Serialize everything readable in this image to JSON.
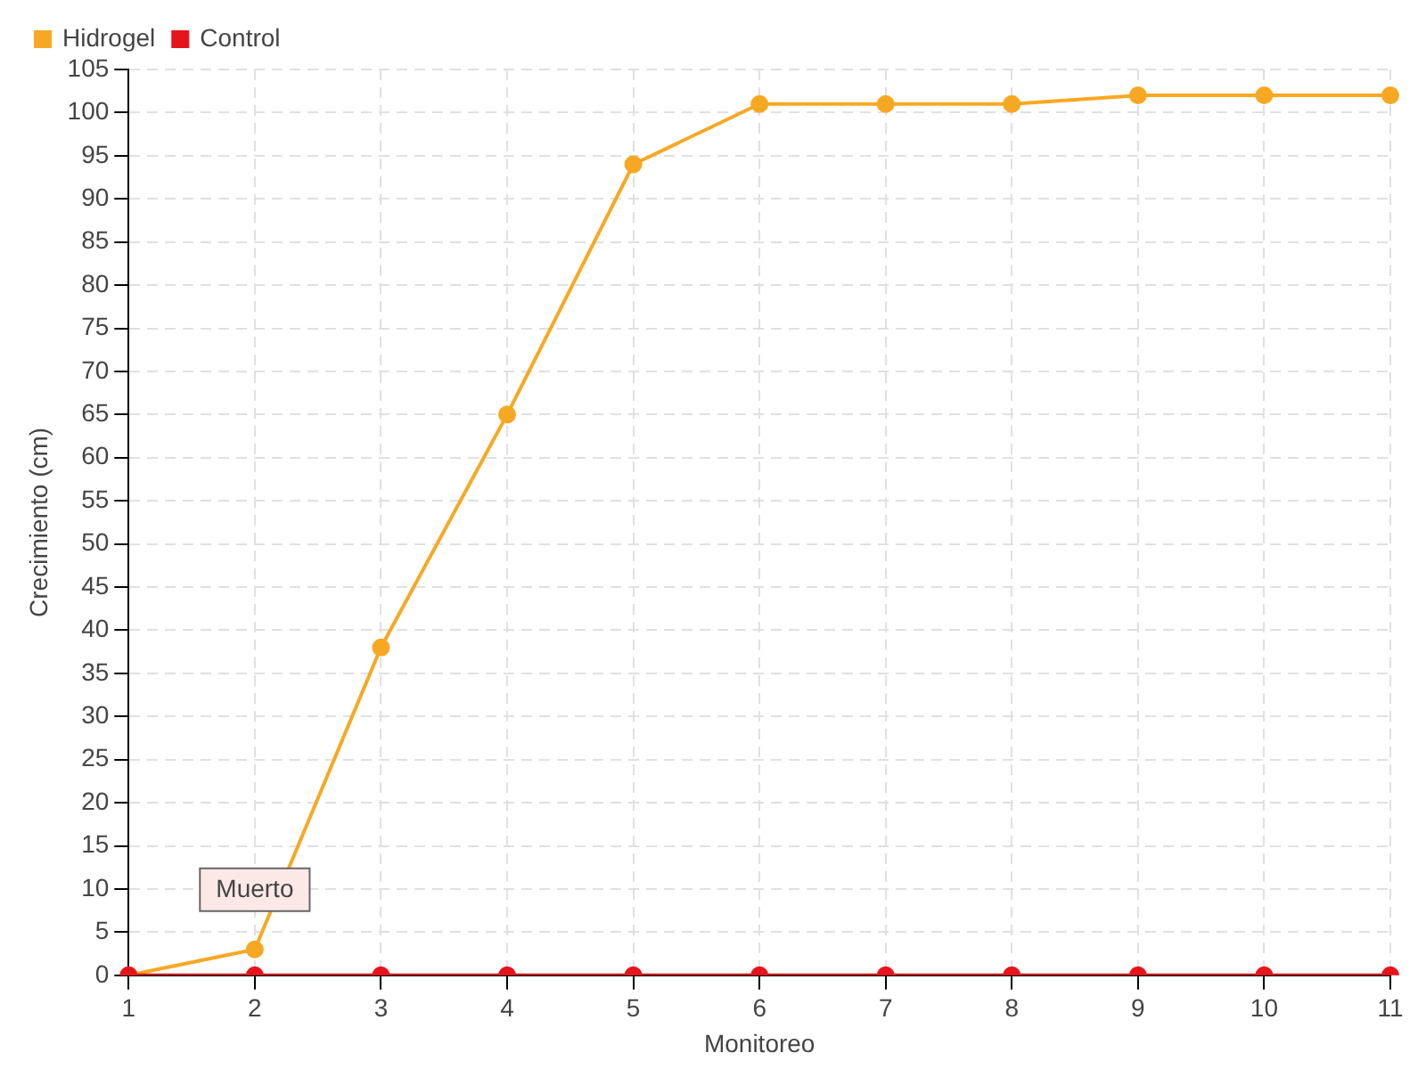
{
  "chart_data": {
    "type": "line",
    "xlabel": "Monitoreo",
    "ylabel": "Crecimiento (cm)",
    "categories": [
      "1",
      "2",
      "3",
      "4",
      "5",
      "6",
      "7",
      "8",
      "9",
      "10",
      "11"
    ],
    "series": [
      {
        "name": "Hidrogel",
        "color": "#f7a823",
        "values": [
          0,
          3,
          38,
          65,
          94,
          101,
          101,
          101,
          102,
          102,
          102
        ]
      },
      {
        "name": "Control",
        "color": "#e8141c",
        "values": [
          0,
          0,
          0,
          0,
          0,
          0,
          0,
          0,
          0,
          0,
          0
        ]
      }
    ],
    "ylim": [
      0,
      105
    ],
    "yticks": [
      0,
      5,
      10,
      15,
      20,
      25,
      30,
      35,
      40,
      45,
      50,
      55,
      60,
      65,
      70,
      75,
      80,
      85,
      90,
      95,
      100,
      105
    ],
    "grid": true,
    "legend": "top left",
    "marker": "circle",
    "line_style": "solid",
    "annotations": [
      {
        "text": "Muerto",
        "x": "2",
        "y": 0
      }
    ]
  }
}
